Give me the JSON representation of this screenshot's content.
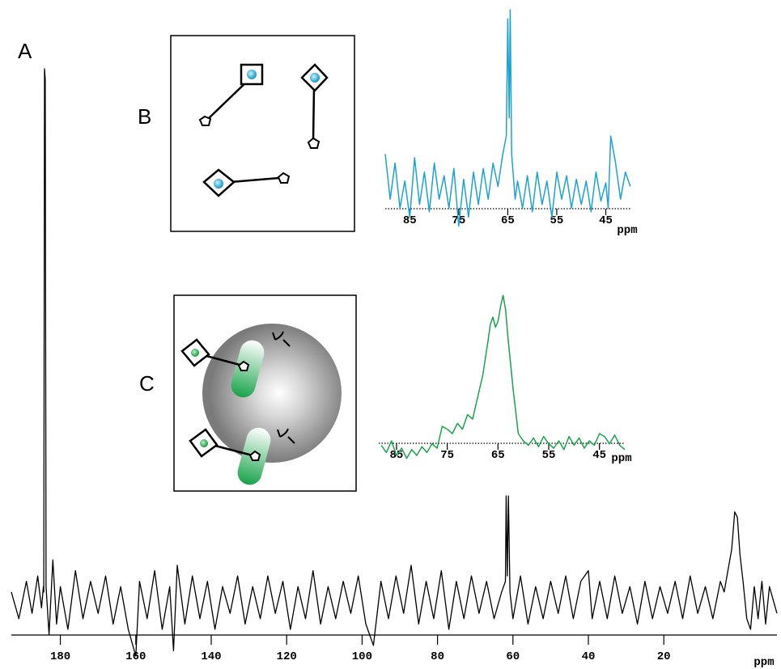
{
  "chart_data": [
    {
      "type": "line",
      "label": "A",
      "xlabel": "ppm",
      "color": "#000000",
      "xlim": [
        193,
        -10
      ],
      "xticks": [
        180,
        160,
        140,
        120,
        100,
        80,
        60,
        40,
        20
      ],
      "x": [
        193,
        191,
        189,
        187.5,
        186,
        185,
        184.5,
        184.4,
        184.2,
        184.0,
        183.8,
        183,
        182,
        181,
        180,
        178,
        176,
        174,
        172,
        170,
        168,
        166,
        164,
        162,
        160,
        159,
        157,
        155,
        153,
        151,
        150,
        149,
        147,
        145,
        143,
        141,
        139,
        137,
        135,
        133,
        131,
        129,
        127,
        125,
        123,
        121,
        119,
        117,
        115,
        113,
        111,
        109,
        107,
        105,
        103,
        101,
        99,
        97,
        95,
        93,
        91,
        89,
        87,
        85,
        83,
        81,
        79,
        77,
        75,
        73,
        71,
        69,
        67,
        65,
        63,
        62,
        61.8,
        61.5,
        61.2,
        60.8,
        60,
        58,
        56,
        54,
        52,
        50,
        48,
        46,
        44,
        42,
        40,
        39,
        37,
        35,
        33,
        31,
        29,
        27,
        25,
        23,
        21,
        19,
        17,
        15,
        13,
        11,
        9,
        7,
        5,
        4,
        3,
        2,
        1.2,
        0.5,
        -0.2,
        -1,
        -2,
        -3,
        -4,
        -5,
        -6,
        -7,
        -8,
        -10
      ],
      "values": [
        2,
        -3,
        4,
        -2,
        5,
        -1,
        3,
        2,
        100,
        98,
        3,
        -6,
        8,
        -4,
        3,
        -5,
        6,
        -3,
        4,
        -2,
        5,
        -4,
        3,
        -5,
        -10,
        4,
        -3,
        6,
        -5,
        3,
        -9,
        7,
        -4,
        5,
        -3,
        4,
        -5,
        3,
        -2,
        5,
        -4,
        3,
        -3,
        5,
        -2,
        4,
        -5,
        3,
        -3,
        6,
        -4,
        3,
        -3,
        4,
        -2,
        5,
        -4,
        -8,
        4,
        -3,
        5,
        -2,
        7,
        -4,
        4,
        -3,
        6,
        -5,
        4,
        -3,
        5,
        -2,
        4,
        -3,
        2,
        4,
        20,
        5,
        20,
        2,
        -3,
        5,
        -4,
        3,
        -3,
        4,
        -2,
        5,
        -3,
        4,
        6,
        -3,
        4,
        -3,
        5,
        -2,
        3,
        -4,
        4,
        -3,
        3,
        -2,
        4,
        -3,
        5,
        -2,
        3,
        -3,
        4,
        2,
        6,
        10,
        17,
        16,
        9,
        4,
        -3,
        -5,
        3,
        -3,
        4,
        -4,
        3,
        -2
      ]
    },
    {
      "type": "line",
      "label": "B",
      "xlabel": "ppm",
      "color": "#1ba3cf",
      "xlim": [
        90,
        39.8
      ],
      "xticks": [
        85,
        75,
        65,
        55,
        45
      ],
      "x": [
        90,
        89,
        88,
        87,
        86,
        85,
        84,
        83,
        82,
        81,
        80,
        79,
        78,
        77,
        76,
        75,
        74,
        73,
        72,
        71,
        70,
        69,
        68,
        67,
        66,
        65.3,
        65,
        64.7,
        64.5,
        64.2,
        63.5,
        63,
        62,
        61,
        60,
        59,
        58,
        57,
        56,
        55,
        54,
        53,
        52,
        51,
        50,
        49,
        48,
        47,
        46,
        45,
        44.5,
        44,
        43,
        42,
        41,
        40
      ],
      "values": [
        20,
        -5,
        15,
        -10,
        5,
        -15,
        18,
        -8,
        10,
        -12,
        15,
        -5,
        8,
        -10,
        12,
        -20,
        6,
        -15,
        10,
        -8,
        12,
        -5,
        15,
        2,
        20,
        30,
        95,
        40,
        100,
        20,
        -5,
        5,
        -10,
        8,
        -12,
        10,
        -8,
        5,
        -15,
        10,
        -5,
        8,
        -10,
        6,
        -8,
        5,
        -12,
        10,
        -6,
        4,
        -10,
        30,
        15,
        -5,
        10,
        2
      ]
    },
    {
      "type": "line",
      "label": "C",
      "xlabel": "ppm",
      "color": "#1aa34a",
      "xlim": [
        88.5,
        40
      ],
      "xticks": [
        85,
        75,
        65,
        55,
        45
      ],
      "x": [
        88,
        87,
        86,
        85,
        84,
        83,
        82,
        81,
        80,
        79,
        78,
        77,
        76,
        75,
        74,
        73,
        72,
        71,
        70,
        69,
        68,
        67,
        66.5,
        66,
        65.5,
        65,
        64.5,
        64,
        63.5,
        63,
        62,
        61,
        60,
        59,
        58,
        57,
        56,
        55,
        54,
        53,
        52,
        51,
        50,
        49,
        48,
        47,
        46,
        45,
        44,
        43,
        42,
        41,
        40
      ],
      "values": [
        -3,
        -8,
        0,
        -10,
        -5,
        -12,
        -6,
        -10,
        -4,
        -8,
        -2,
        -5,
        10,
        8,
        5,
        12,
        8,
        18,
        15,
        30,
        45,
        68,
        80,
        85,
        78,
        82,
        92,
        100,
        90,
        70,
        35,
        5,
        0,
        -3,
        2,
        -4,
        3,
        -2,
        -5,
        0,
        -6,
        3,
        -3,
        2,
        -5,
        0,
        -3,
        5,
        3,
        -2,
        4,
        -3,
        -6
      ]
    }
  ]
}
